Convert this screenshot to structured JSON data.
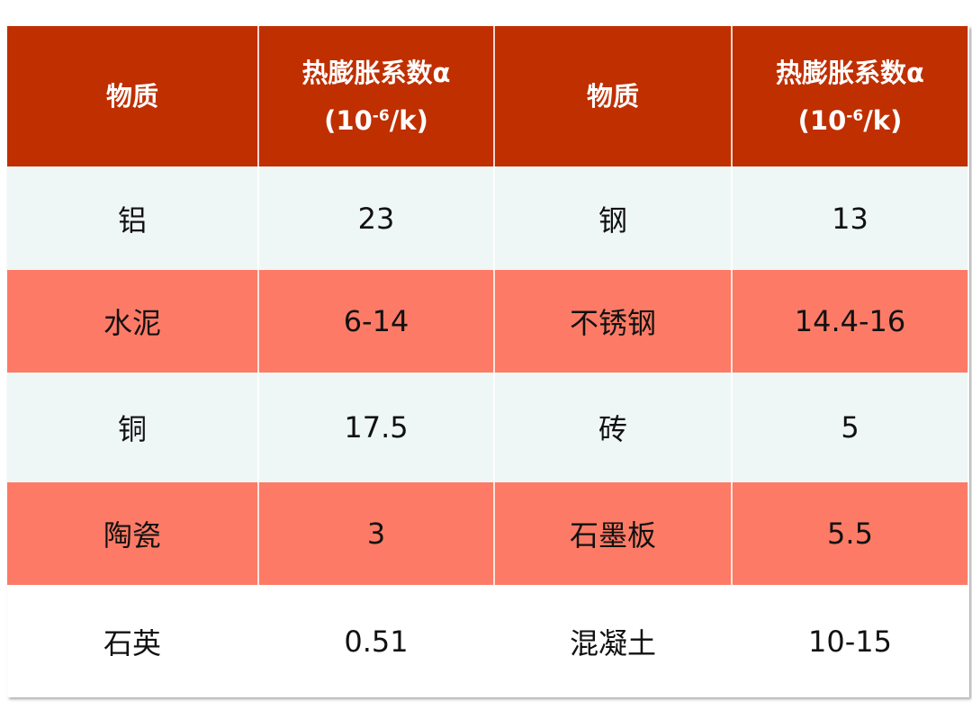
{
  "header": {
    "col_material": "物质",
    "col_coef_line1": "热膨胀系数α",
    "col_coef_unit_open": "(10",
    "col_coef_unit_exp": "-6",
    "col_coef_unit_close": "/k)"
  },
  "rows": [
    {
      "m1": "铝",
      "v1": "23",
      "m2": "钢",
      "v2": "13"
    },
    {
      "m1": "水泥",
      "v1": "6-14",
      "m2": "不锈钢",
      "v2": "14.4-16"
    },
    {
      "m1": "铜",
      "v1": "17.5",
      "m2": "砖",
      "v2": "5"
    },
    {
      "m1": "陶瓷",
      "v1": "3",
      "m2": "石墨板",
      "v2": "5.5"
    },
    {
      "m1": "石英",
      "v1": "0.51",
      "m2": "混凝土",
      "v2": "10-15"
    }
  ],
  "colors": {
    "header": "#bf2f00",
    "row_light": "#eff7f6",
    "row_salmon": "#fd7b66",
    "row_white": "#ffffff"
  }
}
